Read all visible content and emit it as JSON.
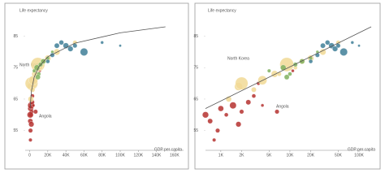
{
  "chart_data": [
    {
      "type": "scatter",
      "xlabel": "GDP per capita",
      "ylabel": "Life expectancy",
      "xscale": "linear",
      "grid": false,
      "xlim": [
        -5000,
        170000
      ],
      "ylim": [
        50,
        88
      ],
      "xticks": [
        0,
        {
          "value": 20000,
          "label": "20K"
        },
        {
          "value": 40000,
          "label": "40K"
        },
        {
          "value": 60000,
          "label": "60K"
        },
        {
          "value": 80000,
          "label": "80K"
        },
        {
          "value": 100000,
          "label": "100K"
        },
        {
          "value": 120000,
          "label": "120K"
        },
        {
          "value": 140000,
          "label": "140K"
        },
        {
          "value": 160000,
          "label": "160K"
        }
      ],
      "yticks": [
        55,
        65,
        75,
        85
      ],
      "annotations": [
        "North Korea",
        "Angola"
      ],
      "trendline": {
        "color": "#555555",
        "x": [
          600,
          1000,
          2000,
          5000,
          10000,
          20000,
          50000,
          100000,
          150000
        ],
        "y": [
          62,
          64.4,
          67.7,
          72,
          75.2,
          78.5,
          82.8,
          86.1,
          88
        ]
      },
      "series": [
        {
          "color": "#b5312f",
          "x": [
            700,
            900,
            1000,
            1200,
            1500,
            2000,
            2500,
            3000,
            4000,
            6500,
            800,
            1800,
            3500,
            11000,
            600
          ],
          "y": [
            58,
            55,
            62,
            60,
            63,
            61,
            64,
            66,
            63,
            61,
            52,
            57,
            70,
            74,
            60
          ],
          "size": [
            8,
            6,
            10,
            5,
            14,
            6,
            8,
            5,
            3,
            6,
            4,
            9,
            4,
            3,
            12
          ]
        },
        {
          "color": "#f1d995",
          "x": [
            1800,
            2000,
            4000,
            6000,
            9000,
            15000,
            30000,
            50000,
            1300,
            3000,
            12000,
            20000,
            7000
          ],
          "y": [
            69,
            70,
            71,
            73,
            76,
            77,
            80,
            83,
            65,
            68,
            75,
            78,
            73
          ],
          "size": [
            20,
            50,
            25,
            14,
            60,
            10,
            12,
            6,
            10,
            8,
            5,
            12,
            6
          ]
        },
        {
          "color": "#7fb05e",
          "x": [
            5000,
            8000,
            12000,
            15000,
            20000,
            10000,
            25000,
            9000
          ],
          "y": [
            74,
            75,
            76,
            77,
            78,
            73,
            80,
            72
          ],
          "size": [
            4,
            10,
            6,
            8,
            4,
            5,
            3,
            8
          ]
        },
        {
          "color": "#3f7f98",
          "x": [
            30000,
            40000,
            45000,
            50000,
            20000,
            25000,
            35000,
            60000,
            80000,
            100000
          ],
          "y": [
            82,
            82,
            81,
            82,
            77,
            79,
            83,
            80,
            83,
            82
          ],
          "size": [
            8,
            10,
            9,
            6,
            5,
            6,
            7,
            18,
            3,
            2
          ]
        }
      ]
    },
    {
      "type": "scatter",
      "xlabel": "GDP per capita",
      "ylabel": "Life expectancy",
      "xscale": "log",
      "grid": false,
      "xlim": [
        600,
        150000
      ],
      "ylim": [
        50,
        88
      ],
      "xticks": [
        {
          "value": 1000,
          "label": "1K"
        },
        {
          "value": 2000,
          "label": "2K"
        },
        {
          "value": 5000,
          "label": "5K"
        },
        {
          "value": 10000,
          "label": "10K"
        },
        {
          "value": 20000,
          "label": "20K"
        },
        {
          "value": 50000,
          "label": "50K"
        },
        {
          "value": 100000,
          "label": "100K"
        }
      ],
      "yticks": [
        55,
        65,
        75,
        85
      ],
      "annotations": [
        "North Korea",
        "Angola"
      ],
      "trendline": {
        "color": "#555555",
        "x": [
          600,
          150000
        ],
        "y": [
          62,
          88
        ]
      },
      "series": [
        {
          "color": "#b5312f",
          "x": [
            700,
            900,
            1000,
            1200,
            1500,
            2000,
            2500,
            3000,
            4000,
            6500,
            800,
            1800,
            3500,
            11000,
            600
          ],
          "y": [
            58,
            55,
            62,
            60,
            63,
            61,
            64,
            66,
            63,
            61,
            52,
            57,
            70,
            74,
            60
          ],
          "size": [
            8,
            6,
            10,
            5,
            14,
            6,
            8,
            5,
            3,
            6,
            4,
            9,
            4,
            3,
            12
          ]
        },
        {
          "color": "#f1d995",
          "x": [
            1800,
            2000,
            4000,
            6000,
            9000,
            15000,
            30000,
            50000,
            1300,
            3000,
            12000,
            20000,
            7000
          ],
          "y": [
            69,
            70,
            71,
            73,
            76,
            77,
            80,
            83,
            65,
            68,
            75,
            78,
            73
          ],
          "size": [
            20,
            50,
            25,
            14,
            60,
            10,
            12,
            6,
            10,
            8,
            5,
            12,
            6
          ]
        },
        {
          "color": "#7fb05e",
          "x": [
            5000,
            8000,
            12000,
            15000,
            20000,
            10000,
            25000,
            9000
          ],
          "y": [
            74,
            75,
            76,
            77,
            78,
            73,
            80,
            72
          ],
          "size": [
            4,
            10,
            6,
            8,
            4,
            5,
            3,
            8
          ]
        },
        {
          "color": "#3f7f98",
          "x": [
            30000,
            40000,
            45000,
            50000,
            20000,
            25000,
            35000,
            60000,
            80000,
            100000
          ],
          "y": [
            82,
            82,
            81,
            82,
            77,
            79,
            83,
            80,
            83,
            82
          ],
          "size": [
            8,
            10,
            9,
            6,
            5,
            6,
            7,
            18,
            3,
            2
          ]
        }
      ]
    }
  ]
}
